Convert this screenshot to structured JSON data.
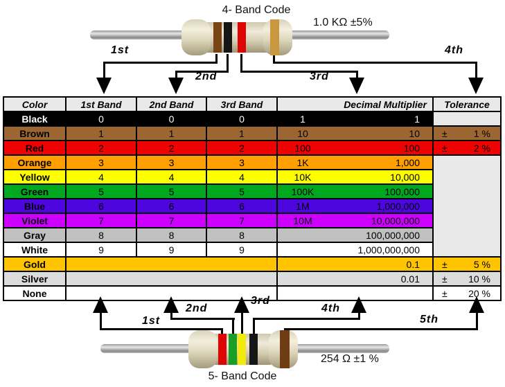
{
  "top_resistor": {
    "title": "4- Band Code",
    "value": "1.0 KΩ ±5%",
    "bands": [
      {
        "name": "brown",
        "color": "#7a4514"
      },
      {
        "name": "black",
        "color": "#161616"
      },
      {
        "name": "red",
        "color": "#dd0404"
      },
      {
        "name": "gold",
        "color": "#c9973e"
      }
    ],
    "arrows": [
      "1st",
      "2nd",
      "3rd",
      "4th"
    ]
  },
  "bottom_resistor": {
    "title": "5- Band Code",
    "value": "254 Ω ±1 %",
    "bands": [
      {
        "name": "red",
        "color": "#e00505"
      },
      {
        "name": "green",
        "color": "#1b9e28"
      },
      {
        "name": "yellow",
        "color": "#f2ea0a"
      },
      {
        "name": "black",
        "color": "#161616"
      },
      {
        "name": "brown",
        "color": "#6f3c14"
      }
    ],
    "arrows": [
      "1st",
      "2nd",
      "3rd",
      "4th",
      "5th"
    ]
  },
  "table": {
    "headers": {
      "color": "Color",
      "band1": "1st Band",
      "band2": "2nd Band",
      "band3": "3rd Band",
      "multiplier": "Decimal Multiplier",
      "tolerance": "Tolerance"
    },
    "header_bg": "#e9e9e9",
    "empty_cell_bg": "#e9e9e9",
    "plus_minus": "±",
    "rows": [
      {
        "name": "Black",
        "bg": "#000000",
        "fg": "#ffffff",
        "bands": [
          "0",
          "0",
          "0"
        ],
        "mult_short": "1",
        "mult_full": "1",
        "tolerance": null,
        "tol_bg": "#e9e9e9"
      },
      {
        "name": "Brown",
        "bg": "#9c6633",
        "fg": "#000000",
        "bands": [
          "1",
          "1",
          "1"
        ],
        "mult_short": "10",
        "mult_full": "10",
        "tolerance": "1 %"
      },
      {
        "name": "Red",
        "bg": "#ee0202",
        "fg": "#000000",
        "bands": [
          "2",
          "2",
          "2"
        ],
        "mult_short": "100",
        "mult_full": "100",
        "tolerance": "2 %"
      },
      {
        "name": "Orange",
        "bg": "#ff9f00",
        "fg": "#000000",
        "bands": [
          "3",
          "3",
          "3"
        ],
        "mult_short": "1K",
        "mult_full": "1,000",
        "tolerance": null
      },
      {
        "name": "Yellow",
        "bg": "#ffff00",
        "fg": "#000000",
        "bands": [
          "4",
          "4",
          "4"
        ],
        "mult_short": "10K",
        "mult_full": "10,000",
        "tolerance": null
      },
      {
        "name": "Green",
        "bg": "#00a820",
        "fg": "#000000",
        "bands": [
          "5",
          "5",
          "5"
        ],
        "mult_short": "100K",
        "mult_full": "100,000",
        "tolerance": null
      },
      {
        "name": "Blue",
        "bg": "#4e06df",
        "fg": "#000000",
        "bands": [
          "6",
          "6",
          "6"
        ],
        "mult_short": "1M",
        "mult_full": "1,000,000",
        "tolerance": null
      },
      {
        "name": "Violet",
        "bg": "#cc00ff",
        "fg": "#000000",
        "bands": [
          "7",
          "7",
          "7"
        ],
        "mult_short": "10M",
        "mult_full": "10,000,000",
        "tolerance": null
      },
      {
        "name": "Gray",
        "bg": "#c0c0c0",
        "fg": "#000000",
        "bands": [
          "8",
          "8",
          "8"
        ],
        "mult_short": "",
        "mult_full": "100,000,000",
        "tolerance": null
      },
      {
        "name": "White",
        "bg": "#ffffff",
        "fg": "#000000",
        "bands": [
          "9",
          "9",
          "9"
        ],
        "mult_short": "",
        "mult_full": "1,000,000,000",
        "tolerance": null
      },
      {
        "name": "Gold",
        "bg": "#ffc400",
        "fg": "#000000",
        "bands": null,
        "mult_short": "",
        "mult_full": "0.1",
        "tolerance": "5 %"
      },
      {
        "name": "Silver",
        "bg": "#dcdcdc",
        "fg": "#000000",
        "bands": null,
        "mult_short": "",
        "mult_full": "0.01",
        "tolerance": "10 %"
      },
      {
        "name": "None",
        "bg": "#ffffff",
        "fg": "#000000",
        "bands": null,
        "mult_short": "",
        "mult_full": "",
        "tolerance": "20 %"
      }
    ]
  }
}
